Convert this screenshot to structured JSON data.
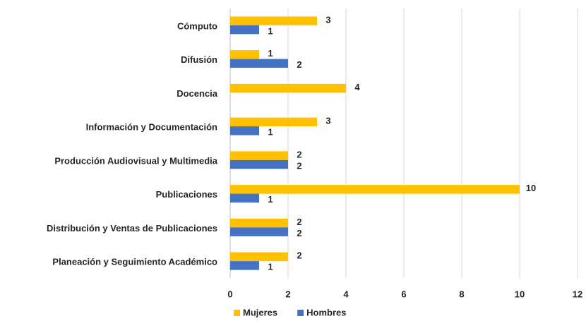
{
  "chart_data": {
    "type": "bar",
    "orientation": "horizontal",
    "categories": [
      "Cómputo",
      "Difusión",
      "Docencia",
      "Información y Documentación",
      "Producción Audiovisual y Multimedia",
      "Publicaciones",
      "Distribución y Ventas de Publicaciones",
      "Planeación y Seguimiento Académico"
    ],
    "series": [
      {
        "name": "Mujeres",
        "color": "#ffc000",
        "values": [
          3,
          1,
          4,
          3,
          2,
          10,
          2,
          2
        ]
      },
      {
        "name": "Hombres",
        "color": "#4472c4",
        "values": [
          1,
          2,
          null,
          1,
          2,
          1,
          2,
          1
        ]
      }
    ],
    "xlim": [
      0,
      12
    ],
    "xticks": [
      0,
      2,
      4,
      6,
      8,
      10,
      12
    ],
    "grid": true,
    "legend": "bottom"
  }
}
